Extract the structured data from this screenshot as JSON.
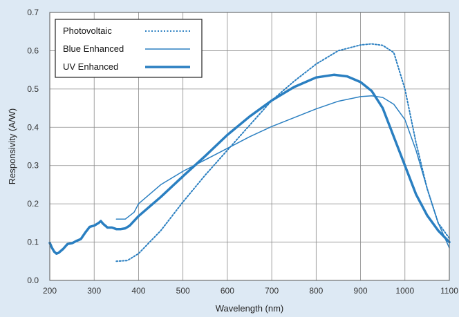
{
  "chart_data": {
    "type": "line",
    "xlabel": "Wavelength (nm)",
    "ylabel": "Responsivity (A/W)",
    "xlim": [
      200,
      1100
    ],
    "ylim": [
      0,
      0.7
    ],
    "x_ticks": [
      "200",
      "300",
      "400",
      "500",
      "600",
      "700",
      "800",
      "900",
      "1000",
      "1100"
    ],
    "y_ticks": [
      "0.0",
      "0.1",
      "0.2",
      "0.3",
      "0.4",
      "0.5",
      "0.6",
      "0.7"
    ],
    "grid": true,
    "legend_position": "top-left",
    "colors": {
      "series": "#2a7fc1",
      "grid": "#8a8a8a",
      "plot_bg": "#ffffff",
      "page_bg": "#dde9f4"
    },
    "series": [
      {
        "name": "Photovoltaic",
        "style": "dotted",
        "x": [
          350,
          375,
          400,
          450,
          500,
          550,
          600,
          650,
          700,
          750,
          800,
          850,
          900,
          925,
          950,
          975,
          1000,
          1025,
          1050,
          1075,
          1100
        ],
        "y": [
          0.05,
          0.052,
          0.07,
          0.13,
          0.205,
          0.275,
          0.34,
          0.405,
          0.47,
          0.52,
          0.565,
          0.6,
          0.615,
          0.618,
          0.614,
          0.595,
          0.5,
          0.36,
          0.24,
          0.15,
          0.11
        ]
      },
      {
        "name": "Blue Enhanced",
        "style": "thin",
        "x": [
          350,
          370,
          390,
          400,
          450,
          500,
          550,
          600,
          650,
          700,
          750,
          800,
          850,
          900,
          925,
          950,
          975,
          1000,
          1025,
          1050,
          1075,
          1100
        ],
        "y": [
          0.16,
          0.16,
          0.178,
          0.2,
          0.25,
          0.285,
          0.315,
          0.345,
          0.375,
          0.402,
          0.425,
          0.448,
          0.468,
          0.48,
          0.482,
          0.478,
          0.46,
          0.42,
          0.34,
          0.24,
          0.15,
          0.085
        ]
      },
      {
        "name": "UV Enhanced",
        "style": "thick",
        "x": [
          200,
          205,
          210,
          215,
          220,
          230,
          240,
          250,
          260,
          270,
          280,
          290,
          300,
          310,
          315,
          320,
          330,
          340,
          350,
          360,
          370,
          380,
          400,
          450,
          500,
          550,
          600,
          650,
          700,
          750,
          800,
          840,
          870,
          900,
          925,
          950,
          975,
          1000,
          1025,
          1050,
          1075,
          1100
        ],
        "y": [
          0.098,
          0.085,
          0.075,
          0.07,
          0.072,
          0.082,
          0.095,
          0.097,
          0.103,
          0.108,
          0.125,
          0.14,
          0.143,
          0.15,
          0.155,
          0.148,
          0.138,
          0.138,
          0.134,
          0.134,
          0.136,
          0.143,
          0.168,
          0.218,
          0.272,
          0.325,
          0.38,
          0.428,
          0.47,
          0.505,
          0.53,
          0.537,
          0.533,
          0.518,
          0.495,
          0.45,
          0.375,
          0.3,
          0.225,
          0.17,
          0.13,
          0.1
        ]
      }
    ]
  }
}
